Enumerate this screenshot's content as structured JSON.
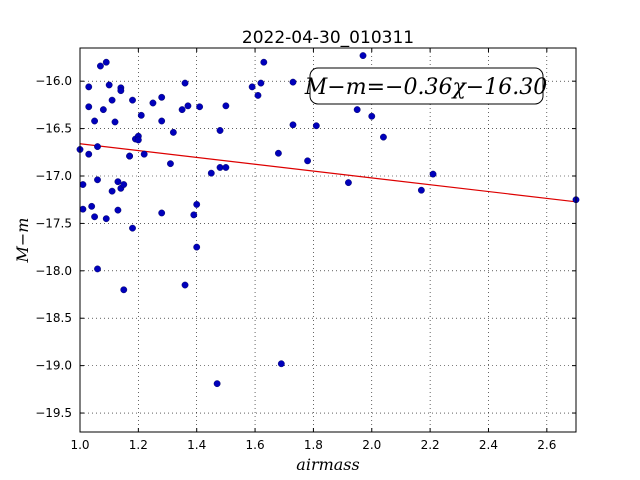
{
  "chart_data": {
    "type": "scatter",
    "title": "2022-04-30_010311",
    "xlabel": "airmass",
    "ylabel": "M−m",
    "xlim": [
      1.0,
      2.7
    ],
    "ylim": [
      -19.7,
      -15.65
    ],
    "y_inverted": false,
    "grid": true,
    "grid_style": "dotted",
    "x_ticks": [
      1.0,
      1.2,
      1.4,
      1.6,
      1.8,
      2.0,
      2.2,
      2.4,
      2.6
    ],
    "x_tick_labels": [
      "1.0",
      "1.2",
      "1.4",
      "1.6",
      "1.8",
      "2.0",
      "2.2",
      "2.4",
      "2.6"
    ],
    "y_ticks": [
      -16.0,
      -16.5,
      -17.0,
      -17.5,
      -18.0,
      -18.5,
      -19.0,
      -19.5
    ],
    "y_tick_labels": [
      "−16.0",
      "−16.5",
      "−17.0",
      "−17.5",
      "−18.0",
      "−18.5",
      "−19.0",
      "−19.5"
    ],
    "annotation": "M−m=−0.36χ−16.30",
    "annotation_position": "top-right",
    "fit_line": {
      "slope": -0.36,
      "intercept": -16.3,
      "color": "#dd0000"
    },
    "point_color": "#0000bb",
    "points": [
      [
        1.0,
        -16.72
      ],
      [
        1.01,
        -17.09
      ],
      [
        1.01,
        -17.35
      ],
      [
        1.03,
        -16.77
      ],
      [
        1.03,
        -16.06
      ],
      [
        1.03,
        -16.27
      ],
      [
        1.04,
        -17.32
      ],
      [
        1.05,
        -17.43
      ],
      [
        1.05,
        -16.42
      ],
      [
        1.06,
        -16.69
      ],
      [
        1.06,
        -17.04
      ],
      [
        1.06,
        -17.98
      ],
      [
        1.07,
        -15.84
      ],
      [
        1.08,
        -16.3
      ],
      [
        1.09,
        -15.8
      ],
      [
        1.09,
        -17.45
      ],
      [
        1.1,
        -16.04
      ],
      [
        1.11,
        -16.2
      ],
      [
        1.11,
        -17.16
      ],
      [
        1.12,
        -16.43
      ],
      [
        1.13,
        -17.36
      ],
      [
        1.13,
        -17.06
      ],
      [
        1.14,
        -16.07
      ],
      [
        1.14,
        -16.1
      ],
      [
        1.14,
        -17.13
      ],
      [
        1.15,
        -17.09
      ],
      [
        1.15,
        -18.2
      ],
      [
        1.17,
        -16.79
      ],
      [
        1.17,
        -16.79
      ],
      [
        1.18,
        -17.55
      ],
      [
        1.18,
        -16.2
      ],
      [
        1.19,
        -16.61
      ],
      [
        1.2,
        -16.58
      ],
      [
        1.2,
        -16.62
      ],
      [
        1.21,
        -16.36
      ],
      [
        1.22,
        -16.77
      ],
      [
        1.25,
        -16.23
      ],
      [
        1.28,
        -16.42
      ],
      [
        1.28,
        -16.17
      ],
      [
        1.28,
        -17.39
      ],
      [
        1.31,
        -16.87
      ],
      [
        1.32,
        -16.54
      ],
      [
        1.35,
        -16.3
      ],
      [
        1.36,
        -16.02
      ],
      [
        1.36,
        -18.15
      ],
      [
        1.37,
        -16.26
      ],
      [
        1.39,
        -17.41
      ],
      [
        1.4,
        -17.3
      ],
      [
        1.4,
        -17.75
      ],
      [
        1.41,
        -16.27
      ],
      [
        1.45,
        -16.97
      ],
      [
        1.47,
        -19.19
      ],
      [
        1.48,
        -16.52
      ],
      [
        1.48,
        -16.91
      ],
      [
        1.5,
        -16.91
      ],
      [
        1.5,
        -16.26
      ],
      [
        1.59,
        -16.06
      ],
      [
        1.61,
        -16.15
      ],
      [
        1.62,
        -16.02
      ],
      [
        1.63,
        -15.8
      ],
      [
        1.68,
        -16.76
      ],
      [
        1.69,
        -18.98
      ],
      [
        1.73,
        -16.46
      ],
      [
        1.73,
        -16.01
      ],
      [
        1.78,
        -16.84
      ],
      [
        1.81,
        -16.47
      ],
      [
        1.92,
        -17.07
      ],
      [
        1.95,
        -16.3
      ],
      [
        1.97,
        -15.73
      ],
      [
        2.0,
        -16.37
      ],
      [
        2.04,
        -16.59
      ],
      [
        2.17,
        -17.15
      ],
      [
        2.21,
        -16.98
      ],
      [
        2.7,
        -17.25
      ]
    ]
  }
}
